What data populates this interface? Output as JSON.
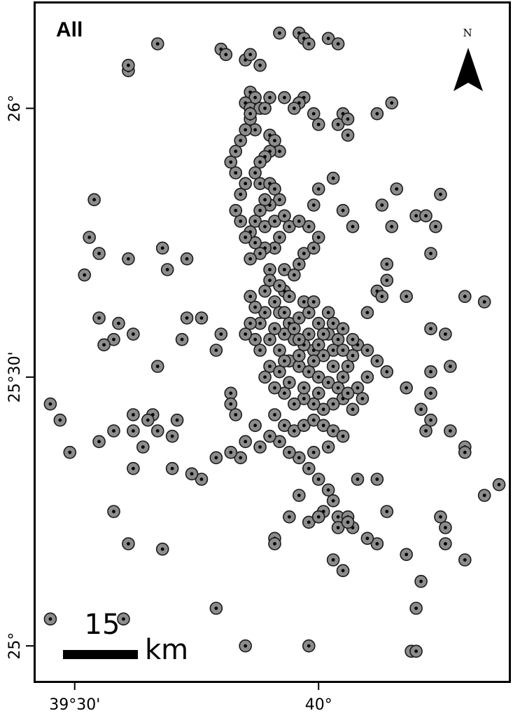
{
  "panel_title": "All",
  "north_label": "N",
  "scale_bar": {
    "number": "15",
    "unit": "km"
  },
  "x_ticks": [
    {
      "value": 39.5,
      "label": "39°30'"
    },
    {
      "value": 40.0,
      "label": "40°"
    }
  ],
  "y_ticks": [
    {
      "value": 25.0,
      "label": "25°"
    },
    {
      "value": 25.5,
      "label": "25°30'"
    },
    {
      "value": 26.0,
      "label": "26°"
    }
  ],
  "colors": {
    "point_fill": "#8c8c8c",
    "point_stroke": "#1a1a1a",
    "point_center": "#000000",
    "frame": "#000000"
  },
  "chart_data": {
    "type": "scatter",
    "xlim": [
      39.42,
      40.39
    ],
    "ylim": [
      24.935,
      26.195
    ],
    "points": [
      [
        39.92,
        26.14
      ],
      [
        39.96,
        26.14
      ],
      [
        39.97,
        26.13
      ],
      [
        39.98,
        26.12
      ],
      [
        40.02,
        26.13
      ],
      [
        40.04,
        26.12
      ],
      [
        39.8,
        26.11
      ],
      [
        39.81,
        26.1
      ],
      [
        39.85,
        26.09
      ],
      [
        39.86,
        26.1
      ],
      [
        39.88,
        26.08
      ],
      [
        39.93,
        26.02
      ],
      [
        39.97,
        26.02
      ],
      [
        39.96,
        26.01
      ],
      [
        40.04,
        25.97
      ],
      [
        40.06,
        25.95
      ],
      [
        39.86,
        26.03
      ],
      [
        39.87,
        26.02
      ],
      [
        39.85,
        26.01
      ],
      [
        39.86,
        26.0
      ],
      [
        39.88,
        26.0
      ],
      [
        39.86,
        25.98
      ],
      [
        39.87,
        25.96
      ],
      [
        39.9,
        25.95
      ],
      [
        39.91,
        25.94
      ],
      [
        39.92,
        25.92
      ],
      [
        39.9,
        25.92
      ],
      [
        39.89,
        25.91
      ],
      [
        39.88,
        25.9
      ],
      [
        39.87,
        25.88
      ],
      [
        39.88,
        25.86
      ],
      [
        39.9,
        25.86
      ],
      [
        39.91,
        25.85
      ],
      [
        39.92,
        25.83
      ],
      [
        39.9,
        25.82
      ],
      [
        39.89,
        25.83
      ],
      [
        39.88,
        25.81
      ],
      [
        39.87,
        25.79
      ],
      [
        39.89,
        25.78
      ],
      [
        39.91,
        25.79
      ],
      [
        39.93,
        25.8
      ],
      [
        39.94,
        25.78
      ],
      [
        39.92,
        25.76
      ],
      [
        39.91,
        25.74
      ],
      [
        39.89,
        25.74
      ],
      [
        39.88,
        25.73
      ],
      [
        39.87,
        25.75
      ],
      [
        39.86,
        25.77
      ],
      [
        39.85,
        25.76
      ],
      [
        39.84,
        25.79
      ],
      [
        39.83,
        25.81
      ],
      [
        39.84,
        25.84
      ],
      [
        39.85,
        25.86
      ],
      [
        39.83,
        25.88
      ],
      [
        39.82,
        25.9
      ],
      [
        39.83,
        25.92
      ],
      [
        39.84,
        25.94
      ],
      [
        39.85,
        25.96
      ],
      [
        39.86,
        25.99
      ],
      [
        39.89,
        26.0
      ],
      [
        39.9,
        26.02
      ],
      [
        39.95,
        26.0
      ],
      [
        39.99,
        25.99
      ],
      [
        40.0,
        25.97
      ],
      [
        40.05,
        25.99
      ],
      [
        40.06,
        25.98
      ],
      [
        40.12,
        25.99
      ],
      [
        40.15,
        26.01
      ],
      [
        39.86,
        25.72
      ],
      [
        39.9,
        25.7
      ],
      [
        39.93,
        25.7
      ],
      [
        39.95,
        25.69
      ],
      [
        39.96,
        25.71
      ],
      [
        39.97,
        25.73
      ],
      [
        39.99,
        25.74
      ],
      [
        40.0,
        25.76
      ],
      [
        39.98,
        25.78
      ],
      [
        39.96,
        25.79
      ],
      [
        39.99,
        25.82
      ],
      [
        40.0,
        25.85
      ],
      [
        40.03,
        25.87
      ],
      [
        40.05,
        25.81
      ],
      [
        40.07,
        25.78
      ],
      [
        39.93,
        25.66
      ],
      [
        39.91,
        25.64
      ],
      [
        39.92,
        25.62
      ],
      [
        39.94,
        25.6
      ],
      [
        39.96,
        25.61
      ],
      [
        39.98,
        25.62
      ],
      [
        40.0,
        25.6
      ],
      [
        40.02,
        25.58
      ],
      [
        40.04,
        25.57
      ],
      [
        40.03,
        25.55
      ],
      [
        40.01,
        25.54
      ],
      [
        39.99,
        25.55
      ],
      [
        39.97,
        25.56
      ],
      [
        39.95,
        25.57
      ],
      [
        39.93,
        25.58
      ],
      [
        39.91,
        25.59
      ],
      [
        39.9,
        25.57
      ],
      [
        39.92,
        25.55
      ],
      [
        39.94,
        25.53
      ],
      [
        39.96,
        25.52
      ],
      [
        39.98,
        25.51
      ],
      [
        40.0,
        25.5
      ],
      [
        40.02,
        25.49
      ],
      [
        40.04,
        25.48
      ],
      [
        40.05,
        25.5
      ],
      [
        40.06,
        25.52
      ],
      [
        40.07,
        25.54
      ],
      [
        40.08,
        25.56
      ],
      [
        40.1,
        25.55
      ],
      [
        40.12,
        25.53
      ],
      [
        40.14,
        25.51
      ],
      [
        40.1,
        25.5
      ],
      [
        40.08,
        25.48
      ],
      [
        40.09,
        25.46
      ],
      [
        40.07,
        25.44
      ],
      [
        40.05,
        25.46
      ],
      [
        40.03,
        25.45
      ],
      [
        40.01,
        25.44
      ],
      [
        39.99,
        25.45
      ],
      [
        39.97,
        25.46
      ],
      [
        39.95,
        25.45
      ],
      [
        39.93,
        25.47
      ],
      [
        39.91,
        25.48
      ],
      [
        39.89,
        25.5
      ],
      [
        39.9,
        25.52
      ],
      [
        39.88,
        25.55
      ],
      [
        39.87,
        25.57
      ],
      [
        39.88,
        25.6
      ],
      [
        39.89,
        25.62
      ],
      [
        39.87,
        25.63
      ],
      [
        39.86,
        25.6
      ],
      [
        39.85,
        25.58
      ],
      [
        39.86,
        25.65
      ],
      [
        39.89,
        25.66
      ],
      [
        39.9,
        25.68
      ],
      [
        39.92,
        25.67
      ],
      [
        39.94,
        25.65
      ],
      [
        39.97,
        25.64
      ],
      [
        39.99,
        25.64
      ],
      [
        40.02,
        25.62
      ],
      [
        40.03,
        25.6
      ],
      [
        40.05,
        25.59
      ],
      [
        40.01,
        25.58
      ],
      [
        39.98,
        25.58
      ],
      [
        39.95,
        25.59
      ],
      [
        39.93,
        25.62
      ],
      [
        39.96,
        25.57
      ],
      [
        39.99,
        25.53
      ],
      [
        39.92,
        25.51
      ],
      [
        39.94,
        25.49
      ],
      [
        39.97,
        25.48
      ],
      [
        40.0,
        25.47
      ],
      [
        40.06,
        25.47
      ],
      [
        40.03,
        25.52
      ],
      [
        39.93,
        25.53
      ],
      [
        39.96,
        25.54
      ],
      [
        40.05,
        25.55
      ],
      [
        40.07,
        25.57
      ],
      [
        40.0,
        25.56
      ],
      [
        39.91,
        25.43
      ],
      [
        39.93,
        25.41
      ],
      [
        39.95,
        25.4
      ],
      [
        39.97,
        25.41
      ],
      [
        39.99,
        25.42
      ],
      [
        40.01,
        25.41
      ],
      [
        40.03,
        25.4
      ],
      [
        40.05,
        25.39
      ],
      [
        40.02,
        25.37
      ],
      [
        39.99,
        25.36
      ],
      [
        39.96,
        25.35
      ],
      [
        39.94,
        25.36
      ],
      [
        39.92,
        25.38
      ],
      [
        39.9,
        25.39
      ],
      [
        39.87,
        25.41
      ],
      [
        39.88,
        25.37
      ],
      [
        39.98,
        25.33
      ],
      [
        40.0,
        25.31
      ],
      [
        40.02,
        25.29
      ],
      [
        40.03,
        25.27
      ],
      [
        40.01,
        25.25
      ],
      [
        40.04,
        25.24
      ],
      [
        40.06,
        25.24
      ],
      [
        40.07,
        25.22
      ],
      [
        40.04,
        25.22
      ],
      [
        39.98,
        25.23
      ],
      [
        39.96,
        25.28
      ],
      [
        39.94,
        25.24
      ],
      [
        39.91,
        25.2
      ],
      [
        39.91,
        25.19
      ],
      [
        40.0,
        25.24
      ],
      [
        40.08,
        25.31
      ],
      [
        40.12,
        25.31
      ],
      [
        40.14,
        25.25
      ],
      [
        40.1,
        25.62
      ],
      [
        40.12,
        25.66
      ],
      [
        40.13,
        25.65
      ],
      [
        40.14,
        25.68
      ],
      [
        40.14,
        25.71
      ],
      [
        40.15,
        25.78
      ],
      [
        40.13,
        25.82
      ],
      [
        40.16,
        25.85
      ],
      [
        40.2,
        25.8
      ],
      [
        40.22,
        25.8
      ],
      [
        40.24,
        25.78
      ],
      [
        40.23,
        25.73
      ],
      [
        40.25,
        25.84
      ],
      [
        40.18,
        25.65
      ],
      [
        40.23,
        25.59
      ],
      [
        40.26,
        25.58
      ],
      [
        40.27,
        25.52
      ],
      [
        40.23,
        25.51
      ],
      [
        40.23,
        25.47
      ],
      [
        40.18,
        25.48
      ],
      [
        40.21,
        25.44
      ],
      [
        40.23,
        25.42
      ],
      [
        40.27,
        25.4
      ],
      [
        40.22,
        25.4
      ],
      [
        40.3,
        25.65
      ],
      [
        40.34,
        25.64
      ],
      [
        40.3,
        25.37
      ],
      [
        40.3,
        25.36
      ],
      [
        40.25,
        25.24
      ],
      [
        40.26,
        25.22
      ],
      [
        40.26,
        25.19
      ],
      [
        40.18,
        25.17
      ],
      [
        40.21,
        25.12
      ],
      [
        40.12,
        25.19
      ],
      [
        40.1,
        25.2
      ],
      [
        40.06,
        25.23
      ],
      [
        40.03,
        25.16
      ],
      [
        40.0,
        25.24
      ],
      [
        39.8,
        25.58
      ],
      [
        39.79,
        25.55
      ],
      [
        39.82,
        25.47
      ],
      [
        39.82,
        25.45
      ],
      [
        39.83,
        25.43
      ],
      [
        39.85,
        25.38
      ],
      [
        39.84,
        25.35
      ],
      [
        39.82,
        25.36
      ],
      [
        39.79,
        25.35
      ],
      [
        39.76,
        25.31
      ],
      [
        39.74,
        25.32
      ],
      [
        39.71,
        25.42
      ],
      [
        39.7,
        25.39
      ],
      [
        39.66,
        25.43
      ],
      [
        39.62,
        25.58
      ],
      [
        39.58,
        25.57
      ],
      [
        39.56,
        25.56
      ],
      [
        39.55,
        25.61
      ],
      [
        39.59,
        25.6
      ],
      [
        39.55,
        25.73
      ],
      [
        39.53,
        25.76
      ],
      [
        39.61,
        25.72
      ],
      [
        39.68,
        25.74
      ],
      [
        39.69,
        25.7
      ],
      [
        39.73,
        25.72
      ],
      [
        39.73,
        25.61
      ],
      [
        39.72,
        25.57
      ],
      [
        39.76,
        25.61
      ],
      [
        39.67,
        25.52
      ],
      [
        39.65,
        25.42
      ],
      [
        39.67,
        25.4
      ],
      [
        39.62,
        25.43
      ],
      [
        39.62,
        25.4
      ],
      [
        39.58,
        25.4
      ],
      [
        39.55,
        25.38
      ],
      [
        39.49,
        25.36
      ],
      [
        39.47,
        25.42
      ],
      [
        39.45,
        25.45
      ],
      [
        39.58,
        25.25
      ],
      [
        39.61,
        25.19
      ],
      [
        39.68,
        25.18
      ],
      [
        39.62,
        25.33
      ],
      [
        39.64,
        25.37
      ],
      [
        39.7,
        25.33
      ],
      [
        39.67,
        26.12
      ],
      [
        39.61,
        26.07
      ],
      [
        39.61,
        26.08
      ],
      [
        39.54,
        25.83
      ],
      [
        39.52,
        25.69
      ],
      [
        39.45,
        25.05
      ],
      [
        39.6,
        25.05
      ],
      [
        39.79,
        25.07
      ],
      [
        40.05,
        25.14
      ],
      [
        40.2,
        25.07
      ],
      [
        39.85,
        25.0
      ],
      [
        39.98,
        25.0
      ],
      [
        40.19,
        24.99
      ],
      [
        40.2,
        24.99
      ],
      [
        40.3,
        25.16
      ],
      [
        40.34,
        25.28
      ],
      [
        40.37,
        25.3
      ]
    ]
  }
}
